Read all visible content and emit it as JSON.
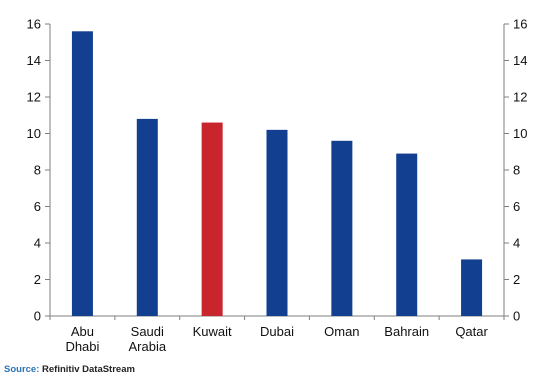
{
  "chart_data": {
    "type": "bar",
    "categories": [
      "Abu Dhabi",
      "Saudi Arabia",
      "Kuwait",
      "Dubai",
      "Oman",
      "Bahrain",
      "Qatar"
    ],
    "category_lines": [
      [
        "Abu",
        "Dhabi"
      ],
      [
        "Saudi",
        "Arabia"
      ],
      [
        "Kuwait"
      ],
      [
        "Dubai"
      ],
      [
        "Oman"
      ],
      [
        "Bahrain"
      ],
      [
        "Qatar"
      ]
    ],
    "values": [
      15.6,
      10.8,
      10.6,
      10.2,
      9.6,
      8.9,
      3.1
    ],
    "highlight_index": 2,
    "ylim": [
      0,
      16
    ],
    "yticks": [
      "0",
      "2",
      "4",
      "6",
      "8",
      "10",
      "12",
      "14",
      "16"
    ],
    "axes": [
      "left",
      "right"
    ],
    "grid": false,
    "title": "",
    "xlabel": "",
    "ylabel": ""
  },
  "colors": {
    "bar": "#123f8f",
    "highlight": "#c9252c",
    "axis": "#7f7f7f"
  },
  "source": {
    "prefix": "Source:",
    "text": "Refinitiv DataStream"
  }
}
